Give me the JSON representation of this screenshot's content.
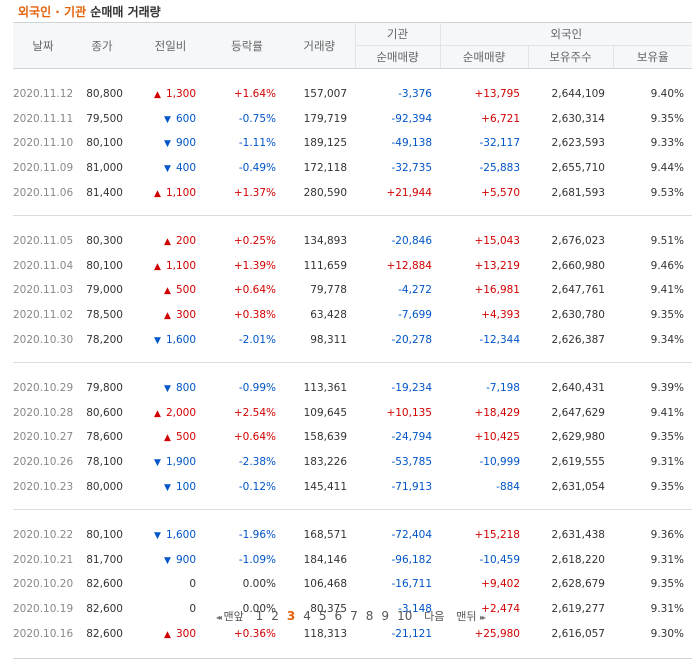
{
  "title": {
    "part1": "외국인 · 기관",
    "part2": " 순매매 거래량"
  },
  "headers": {
    "date": "날짜",
    "close": "종가",
    "prev": "전일비",
    "rate": "등락률",
    "volume": "거래량",
    "inst_group": "기관",
    "foreign_group": "외국인",
    "inst_net": "순매매량",
    "foreign_net": "순매매량",
    "foreign_hold": "보유주수",
    "foreign_ratio": "보유율"
  },
  "groups": [
    [
      {
        "date": "2020.11.12",
        "close": "80,800",
        "dir": "up",
        "chg": "1,300",
        "rate": "+1.64%",
        "vol": "157,007",
        "inst": "-3,376",
        "frn": "+13,795",
        "hold": "2,644,109",
        "ratio": "9.40%"
      },
      {
        "date": "2020.11.11",
        "close": "79,500",
        "dir": "down",
        "chg": "600",
        "rate": "-0.75%",
        "vol": "179,719",
        "inst": "-92,394",
        "frn": "+6,721",
        "hold": "2,630,314",
        "ratio": "9.35%"
      },
      {
        "date": "2020.11.10",
        "close": "80,100",
        "dir": "down",
        "chg": "900",
        "rate": "-1.11%",
        "vol": "189,125",
        "inst": "-49,138",
        "frn": "-32,117",
        "hold": "2,623,593",
        "ratio": "9.33%"
      },
      {
        "date": "2020.11.09",
        "close": "81,000",
        "dir": "down",
        "chg": "400",
        "rate": "-0.49%",
        "vol": "172,118",
        "inst": "-32,735",
        "frn": "-25,883",
        "hold": "2,655,710",
        "ratio": "9.44%"
      },
      {
        "date": "2020.11.06",
        "close": "81,400",
        "dir": "up",
        "chg": "1,100",
        "rate": "+1.37%",
        "vol": "280,590",
        "inst": "+21,944",
        "frn": "+5,570",
        "hold": "2,681,593",
        "ratio": "9.53%"
      }
    ],
    [
      {
        "date": "2020.11.05",
        "close": "80,300",
        "dir": "up",
        "chg": "200",
        "rate": "+0.25%",
        "vol": "134,893",
        "inst": "-20,846",
        "frn": "+15,043",
        "hold": "2,676,023",
        "ratio": "9.51%"
      },
      {
        "date": "2020.11.04",
        "close": "80,100",
        "dir": "up",
        "chg": "1,100",
        "rate": "+1.39%",
        "vol": "111,659",
        "inst": "+12,884",
        "frn": "+13,219",
        "hold": "2,660,980",
        "ratio": "9.46%"
      },
      {
        "date": "2020.11.03",
        "close": "79,000",
        "dir": "up",
        "chg": "500",
        "rate": "+0.64%",
        "vol": "79,778",
        "inst": "-4,272",
        "frn": "+16,981",
        "hold": "2,647,761",
        "ratio": "9.41%"
      },
      {
        "date": "2020.11.02",
        "close": "78,500",
        "dir": "up",
        "chg": "300",
        "rate": "+0.38%",
        "vol": "63,428",
        "inst": "-7,699",
        "frn": "+4,393",
        "hold": "2,630,780",
        "ratio": "9.35%"
      },
      {
        "date": "2020.10.30",
        "close": "78,200",
        "dir": "down",
        "chg": "1,600",
        "rate": "-2.01%",
        "vol": "98,311",
        "inst": "-20,278",
        "frn": "-12,344",
        "hold": "2,626,387",
        "ratio": "9.34%"
      }
    ],
    [
      {
        "date": "2020.10.29",
        "close": "79,800",
        "dir": "down",
        "chg": "800",
        "rate": "-0.99%",
        "vol": "113,361",
        "inst": "-19,234",
        "frn": "-7,198",
        "hold": "2,640,431",
        "ratio": "9.39%"
      },
      {
        "date": "2020.10.28",
        "close": "80,600",
        "dir": "up",
        "chg": "2,000",
        "rate": "+2.54%",
        "vol": "109,645",
        "inst": "+10,135",
        "frn": "+18,429",
        "hold": "2,647,629",
        "ratio": "9.41%"
      },
      {
        "date": "2020.10.27",
        "close": "78,600",
        "dir": "up",
        "chg": "500",
        "rate": "+0.64%",
        "vol": "158,639",
        "inst": "-24,794",
        "frn": "+10,425",
        "hold": "2,629,980",
        "ratio": "9.35%"
      },
      {
        "date": "2020.10.26",
        "close": "78,100",
        "dir": "down",
        "chg": "1,900",
        "rate": "-2.38%",
        "vol": "183,226",
        "inst": "-53,785",
        "frn": "-10,999",
        "hold": "2,619,555",
        "ratio": "9.31%"
      },
      {
        "date": "2020.10.23",
        "close": "80,000",
        "dir": "down",
        "chg": "100",
        "rate": "-0.12%",
        "vol": "145,411",
        "inst": "-71,913",
        "frn": "-884",
        "hold": "2,631,054",
        "ratio": "9.35%"
      }
    ],
    [
      {
        "date": "2020.10.22",
        "close": "80,100",
        "dir": "down",
        "chg": "1,600",
        "rate": "-1.96%",
        "vol": "168,571",
        "inst": "-72,404",
        "frn": "+15,218",
        "hold": "2,631,438",
        "ratio": "9.36%"
      },
      {
        "date": "2020.10.21",
        "close": "81,700",
        "dir": "down",
        "chg": "900",
        "rate": "-1.09%",
        "vol": "184,146",
        "inst": "-96,182",
        "frn": "-10,459",
        "hold": "2,618,220",
        "ratio": "9.31%"
      },
      {
        "date": "2020.10.20",
        "close": "82,600",
        "dir": "none",
        "chg": "0",
        "rate": "0.00%",
        "vol": "106,468",
        "inst": "-16,711",
        "frn": "+9,402",
        "hold": "2,628,679",
        "ratio": "9.35%"
      },
      {
        "date": "2020.10.19",
        "close": "82,600",
        "dir": "none",
        "chg": "0",
        "rate": "0.00%",
        "vol": "80,375",
        "inst": "-3,148",
        "frn": "+2,474",
        "hold": "2,619,277",
        "ratio": "9.31%"
      },
      {
        "date": "2020.10.16",
        "close": "82,600",
        "dir": "up",
        "chg": "300",
        "rate": "+0.36%",
        "vol": "118,313",
        "inst": "-21,121",
        "frn": "+25,980",
        "hold": "2,616,057",
        "ratio": "9.30%"
      }
    ]
  ],
  "pager": {
    "first": "맨앞",
    "pages": [
      "1",
      "2",
      "3",
      "4",
      "5",
      "6",
      "7",
      "8",
      "9",
      "10"
    ],
    "current": "3",
    "next": "다음",
    "last": "맨뒤"
  },
  "colors": {
    "up": "#d20000",
    "down": "#0055c8",
    "accent": "#e4620c"
  }
}
